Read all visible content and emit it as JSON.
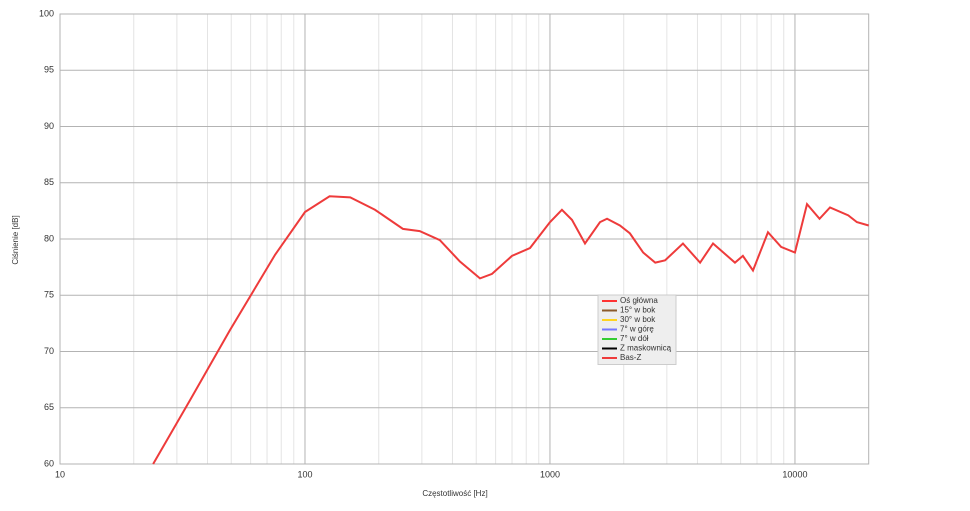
{
  "chart_data": {
    "type": "line",
    "x_label": "Częstotliwość [Hz]",
    "y_label": "Ciśnienie [dB]",
    "xlim": [
      10,
      20000
    ],
    "ylim": [
      60,
      100
    ],
    "x_log": true,
    "grid": true,
    "xticks": [
      10,
      100,
      1000,
      10000
    ],
    "yticks": [
      60,
      65,
      70,
      75,
      80,
      85,
      90,
      95,
      100
    ],
    "series": [
      {
        "name": "Oś główna",
        "color": "#ff3333",
        "x": [],
        "values": []
      },
      {
        "name": "15° w bok",
        "color": "#8b5a2b",
        "x": [],
        "values": []
      },
      {
        "name": "30° w bok",
        "color": "#ffd320",
        "x": [],
        "values": []
      },
      {
        "name": "7° w górę",
        "color": "#7777ff",
        "x": [],
        "values": []
      },
      {
        "name": "7° w dół",
        "color": "#33cc33",
        "x": [],
        "values": []
      },
      {
        "name": "Z maskownicą",
        "color": "#000000",
        "x": [],
        "values": []
      },
      {
        "name": "Bas-Z",
        "color": "#ee3b3b",
        "x": [
          24,
          34,
          49.4,
          75.5,
          100,
          126,
          153,
          193,
          251,
          294,
          355,
          429,
          518,
          580,
          700,
          829,
          1000,
          1119,
          1230,
          1390,
          1600,
          1710,
          1930,
          2120,
          2400,
          2690,
          2950,
          3490,
          4100,
          4630,
          5690,
          6130,
          6740,
          7760,
          8780,
          10000,
          11200,
          12600,
          13900,
          16500,
          17900,
          20000
        ],
        "values": [
          60,
          65.7,
          71.9,
          78.6,
          82.4,
          83.8,
          83.7,
          82.6,
          80.9,
          80.7,
          79.9,
          78,
          76.5,
          76.9,
          78.5,
          79.2,
          81.5,
          82.6,
          81.7,
          79.6,
          81.5,
          81.8,
          81.2,
          80.5,
          78.8,
          77.9,
          78.1,
          79.6,
          77.9,
          79.6,
          77.9,
          78.5,
          77.2,
          80.6,
          79.3,
          78.8,
          83.1,
          81.8,
          82.8,
          82.1,
          81.5,
          81.2
        ]
      }
    ]
  }
}
